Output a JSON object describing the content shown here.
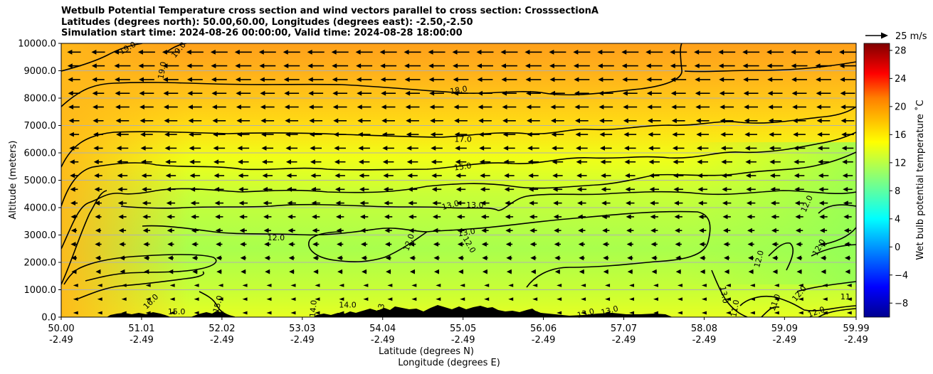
{
  "title_lines": [
    "Wetbulb Potential Temperature cross section and wind vectors parallel to cross section: CrosssectionA",
    "Latitudes (degrees north): 50.00,60.00, Longitudes (degrees east): -2.50,-2.50",
    "Simulation start time: 2024-08-26 00:00:00, Valid time: 2024-08-28 18:00:00"
  ],
  "chart_data": {
    "type": "heatmap",
    "description_free": true,
    "ylabel": "Altitude (meters)",
    "xlabel_lines": [
      "Latitude (degrees N)",
      "Longitude (degrees E)"
    ],
    "ylim": [
      0,
      10000
    ],
    "xlim": [
      50.0,
      59.99
    ],
    "y_ticks": [
      0,
      1000,
      2000,
      3000,
      4000,
      5000,
      6000,
      7000,
      8000,
      9000,
      10000
    ],
    "y_tick_labels": [
      "0.0",
      "1000.0",
      "2000.0",
      "3000.0",
      "4000.0",
      "5000.0",
      "6000.0",
      "7000.0",
      "8000.0",
      "9000.0",
      "10000.0"
    ],
    "x_ticks": [
      50.0,
      51.01,
      52.02,
      53.03,
      54.04,
      55.05,
      56.06,
      57.07,
      58.08,
      59.09,
      59.99
    ],
    "x_tick_lat_labels": [
      "50.00",
      "51.01",
      "52.02",
      "53.03",
      "54.04",
      "55.05",
      "56.06",
      "57.07",
      "58.08",
      "59.09",
      "59.99"
    ],
    "x_tick_lon_labels": [
      "-2.49",
      "-2.49",
      "-2.49",
      "-2.49",
      "-2.49",
      "-2.49",
      "-2.49",
      "-2.49",
      "-2.49",
      "-2.49",
      "-2.49"
    ],
    "grid": "horizontal",
    "colorbar": {
      "label": "Wet bulb potential temperature ˚C",
      "range": [
        -10,
        29
      ],
      "ticks": [
        -8,
        -4,
        0,
        4,
        8,
        12,
        16,
        20,
        24,
        28
      ],
      "tick_labels": [
        "−8",
        "−4",
        "0",
        "4",
        "8",
        "12",
        "16",
        "20",
        "24",
        "28"
      ]
    },
    "quiver_key": "25 m/s",
    "contour_labels": [
      {
        "text": "19.0",
        "lat": 50.85,
        "alt": 9750,
        "rot": -30
      },
      {
        "text": "19.0",
        "lat": 51.3,
        "alt": 9000,
        "rot": -80
      },
      {
        "text": "19.0",
        "lat": 51.5,
        "alt": 9700,
        "rot": -50
      },
      {
        "text": "18.0",
        "lat": 55.0,
        "alt": 8200,
        "rot": -10
      },
      {
        "text": "17.0",
        "lat": 55.05,
        "alt": 6400,
        "rot": 0
      },
      {
        "text": "15.0",
        "lat": 55.05,
        "alt": 5400,
        "rot": -8
      },
      {
        "text": "13.0",
        "lat": 54.9,
        "alt": 4000,
        "rot": -15
      },
      {
        "text": "13.0",
        "lat": 55.2,
        "alt": 4000,
        "rot": 0
      },
      {
        "text": "12.0",
        "lat": 52.7,
        "alt": 2800,
        "rot": 0
      },
      {
        "text": "12.0",
        "lat": 54.4,
        "alt": 2700,
        "rot": -70
      },
      {
        "text": "13.0",
        "lat": 55.1,
        "alt": 3000,
        "rot": -10
      },
      {
        "text": "12.0",
        "lat": 55.1,
        "alt": 2600,
        "rot": 60
      },
      {
        "text": "12.0",
        "lat": 59.4,
        "alt": 4100,
        "rot": -65
      },
      {
        "text": "12.0",
        "lat": 59.55,
        "alt": 2500,
        "rot": -60
      },
      {
        "text": "12.0",
        "lat": 58.8,
        "alt": 2100,
        "rot": -75
      },
      {
        "text": "13.0",
        "lat": 58.3,
        "alt": 800,
        "rot": 80
      },
      {
        "text": "12.0",
        "lat": 59.3,
        "alt": 800,
        "rot": -50
      },
      {
        "text": "11.0",
        "lat": 59.0,
        "alt": 500,
        "rot": -70
      },
      {
        "text": "11.0",
        "lat": 58.5,
        "alt": 300,
        "rot": -80
      },
      {
        "text": "12.0",
        "lat": 59.5,
        "alt": 100,
        "rot": -20
      },
      {
        "text": "11.",
        "lat": 59.87,
        "alt": 650,
        "rot": 0
      },
      {
        "text": "13.0",
        "lat": 56.6,
        "alt": 50,
        "rot": -15
      },
      {
        "text": "13.0",
        "lat": 56.9,
        "alt": 150,
        "rot": -15
      },
      {
        "text": "14.0",
        "lat": 53.6,
        "alt": 350,
        "rot": 0
      },
      {
        "text": "14.0",
        "lat": 53.2,
        "alt": 300,
        "rot": -85
      },
      {
        "text": "16.0",
        "lat": 51.15,
        "alt": 500,
        "rot": -45
      },
      {
        "text": "15.0",
        "lat": 51.45,
        "alt": 100,
        "rot": 0
      },
      {
        "text": "15.0",
        "lat": 52.0,
        "alt": 450,
        "rot": -75
      },
      {
        "text": "13",
        "lat": 54.05,
        "alt": 300,
        "rot": -80
      }
    ]
  },
  "colors": {
    "background": "#ffffff",
    "terrain": "#000000",
    "contour": "#000000",
    "field_top": "#ffa31a",
    "field_mid": "#f5ff14",
    "field_low": "#a6ff4f"
  }
}
